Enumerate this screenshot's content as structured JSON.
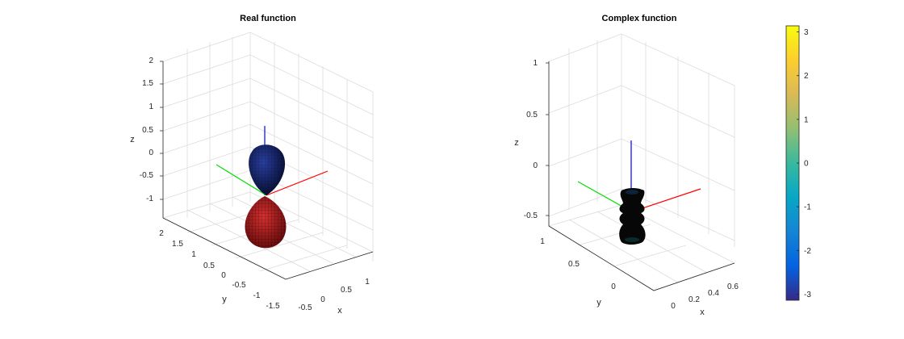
{
  "figure": {
    "background": "#ffffff"
  },
  "chart_data": [
    {
      "type": "surface3d",
      "title": "Real function",
      "xlabel": "x",
      "ylabel": "y",
      "zlabel": "z",
      "x_ticks": [
        "-0.5",
        "0",
        "0.5",
        "1"
      ],
      "y_ticks": [
        "2",
        "1.5",
        "1",
        "0.5",
        "0",
        "-0.5",
        "-1",
        "-1.5"
      ],
      "z_ticks": [
        "2",
        "1.5",
        "1",
        "0.5",
        "0",
        "-0.5",
        "-1"
      ],
      "xlim": [
        -0.5,
        1
      ],
      "ylim": [
        -1.5,
        2
      ],
      "zlim": [
        -1.2,
        2
      ],
      "grid": true,
      "lobes": [
        {
          "name": "upper lobe",
          "color": "#0b1a5e",
          "z_center": 0.35
        },
        {
          "name": "lower lobe",
          "color": "#b02020",
          "z_center": -0.55
        }
      ],
      "axis_lines": {
        "x_color": "#ff0000",
        "y_color": "#00cc00",
        "z_color": "#0000ff"
      }
    },
    {
      "type": "surface3d",
      "title": "Complex function",
      "xlabel": "x",
      "ylabel": "y",
      "zlabel": "z",
      "x_ticks": [
        "0",
        "0.2",
        "0.4",
        "0.6"
      ],
      "y_ticks": [
        "1",
        "0.5",
        "0"
      ],
      "z_ticks": [
        "1",
        "0.5",
        "0",
        "-0.5"
      ],
      "xlim": [
        0,
        0.6
      ],
      "ylim": [
        0,
        1
      ],
      "zlim": [
        -0.6,
        1.1
      ],
      "grid": true,
      "lobes": [
        {
          "name": "dumbbell surface",
          "color": "#080808",
          "z_center": -0.4
        }
      ],
      "axis_lines": {
        "x_color": "#ff0000",
        "y_color": "#00cc00",
        "z_color": "#0000ff"
      }
    },
    {
      "type": "colorbar",
      "ticks": [
        "3",
        "2",
        "1",
        "0",
        "-1",
        "-2",
        "-3"
      ],
      "range": [
        -3.14,
        3.14
      ],
      "colormap": "parula",
      "colors": [
        "#352a87",
        "#0363e1",
        "#1485d4",
        "#06a7c6",
        "#38b99e",
        "#92bf73",
        "#d9ba56",
        "#fcce2e",
        "#f9fb0e"
      ]
    }
  ]
}
